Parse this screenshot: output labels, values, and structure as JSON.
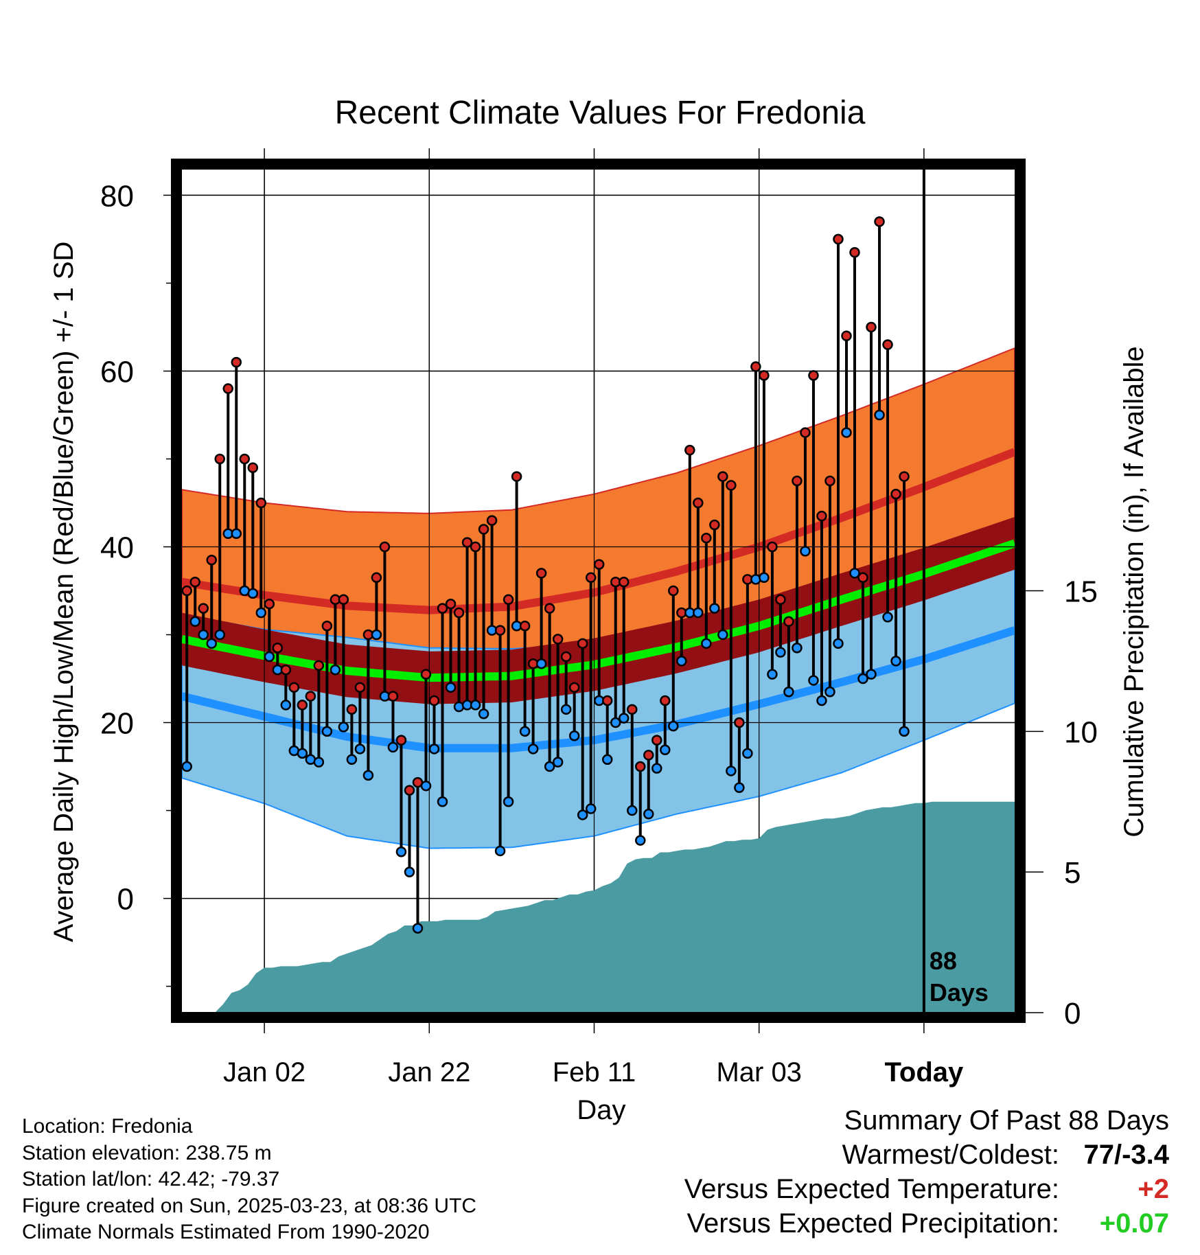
{
  "chart_data": {
    "type": "line",
    "title": "Recent Climate Values For Fredonia",
    "xlabel": "Day",
    "ylabel": "Average Daily High/Low/Mean (Red/Blue/Green) +/- 1 SD",
    "y2label": "Cumulative Precipitation (in), If Available",
    "xticks": [
      "Jan 02",
      "Jan 22",
      "Feb 11",
      "Mar 03",
      "Today"
    ],
    "xtick_days": [
      10,
      30,
      50,
      70,
      90
    ],
    "today_day": 90,
    "xlim": [
      0,
      101
    ],
    "ylim": [
      -13,
      83
    ],
    "yticks": [
      0,
      20,
      40,
      60,
      80
    ],
    "y2lim": [
      0,
      30
    ],
    "y2ticks": [
      0,
      5,
      10,
      15
    ],
    "grid": true,
    "days_annotation": [
      "88",
      "Days"
    ],
    "colors": {
      "high_band": "#f47a30",
      "high_mean": "#d42a25",
      "low_band": "#83c3e8",
      "low_mean": "#1e90ff",
      "mean_band": "#921014",
      "mean_line": "#00ee00",
      "precip": "#4a9ba2",
      "high_point": "#d42a25",
      "low_point": "#1e90ff"
    },
    "normals_days": [
      0,
      10,
      20,
      30,
      40,
      50,
      60,
      70,
      80,
      90,
      101
    ],
    "normal_high": [
      36,
      34.5,
      33.3,
      32.8,
      33.2,
      34.8,
      37.2,
      40,
      43.3,
      46.8,
      50.8
    ],
    "normal_high_sd": [
      10.5,
      10.5,
      10.7,
      11,
      11,
      11.2,
      11.2,
      11.5,
      11.6,
      11.7,
      11.8
    ],
    "normal_low": [
      23,
      20.7,
      18.4,
      17.1,
      17.1,
      18,
      19.8,
      22.1,
      24.6,
      27.2,
      30.5
    ],
    "normal_low_sd": [
      9.3,
      9.9,
      11.3,
      11.4,
      11.3,
      10.9,
      10.2,
      10.5,
      10.3,
      9.2,
      8.3
    ],
    "normal_mean": [
      29.5,
      27.6,
      25.9,
      25.1,
      25.3,
      26.6,
      28.6,
      31,
      34,
      36.9,
      40.4
    ],
    "normal_mean_sd": [
      3,
      3,
      3,
      3,
      3,
      3,
      3,
      3,
      3,
      3,
      3
    ],
    "series": [
      {
        "name": "High",
        "values": [
          35,
          36,
          33,
          38.5,
          50,
          58,
          61,
          50,
          49,
          45,
          33.5,
          28.5,
          26,
          24,
          22,
          23,
          26.5,
          31,
          34,
          34,
          21.5,
          24,
          30,
          36.5,
          40,
          23,
          18,
          12.3,
          13.2,
          25.5,
          22.5,
          33,
          33.5,
          32.5,
          40.5,
          40,
          42,
          43,
          30.5,
          34,
          48,
          31,
          26.7,
          37,
          33,
          29.5,
          27.5,
          24,
          29,
          36.5,
          38,
          22.5,
          36,
          36,
          21.5,
          15,
          16.3,
          18,
          22.5,
          35,
          32.5,
          51,
          45,
          41,
          42.5,
          48,
          47,
          20,
          36.3,
          60.5,
          59.5,
          40,
          34,
          31.5,
          47.5,
          53,
          59.5,
          43.5,
          47.5,
          75,
          64,
          73.5,
          36.5,
          65,
          77,
          63,
          46,
          48
        ]
      },
      {
        "name": "Low",
        "values": [
          15,
          31.5,
          30,
          29,
          30,
          41.5,
          41.5,
          35,
          34.7,
          32.5,
          27.5,
          26,
          22,
          16.8,
          16.5,
          15.8,
          15.5,
          19,
          26,
          19.5,
          15.8,
          17,
          14,
          30,
          23,
          17.2,
          5.3,
          3,
          -3.4,
          12.8,
          17,
          11,
          24,
          21.8,
          22,
          22,
          21,
          30.5,
          5.4,
          11,
          31,
          19,
          17,
          26.7,
          15,
          15.5,
          21.5,
          18.5,
          9.5,
          10.2,
          22.5,
          15.8,
          20,
          20.5,
          10,
          6.6,
          9.6,
          14.8,
          16.9,
          19.6,
          27,
          32.5,
          32.5,
          29,
          33,
          30,
          14.5,
          12.6,
          16.5,
          36.3,
          36.5,
          25.5,
          28,
          23.5,
          28.5,
          39.5,
          24.8,
          22.5,
          23.5,
          29,
          53,
          37,
          25,
          25.5,
          55,
          32,
          27,
          19
        ]
      },
      {
        "name": "Precipitation",
        "values": [
          0,
          0,
          0,
          0,
          0,
          0.3,
          0.7,
          0.8,
          1.0,
          1.4,
          1.6,
          1.6,
          1.65,
          1.65,
          1.65,
          1.7,
          1.75,
          1.8,
          1.8,
          2.0,
          2.1,
          2.2,
          2.3,
          2.4,
          2.6,
          2.8,
          2.9,
          3.1,
          3.1,
          3.25,
          3.25,
          3.25,
          3.3,
          3.3,
          3.3,
          3.3,
          3.3,
          3.4,
          3.6,
          3.65,
          3.7,
          3.75,
          3.8,
          3.9,
          4.0,
          4.0,
          4.1,
          4.2,
          4.2,
          4.3,
          4.35,
          4.5,
          4.6,
          4.8,
          5.3,
          5.45,
          5.5,
          5.5,
          5.7,
          5.7,
          5.75,
          5.8,
          5.8,
          5.85,
          5.9,
          6.0,
          6.1,
          6.1,
          6.15,
          6.15,
          6.2,
          6.5,
          6.6,
          6.65,
          6.7,
          6.75,
          6.8,
          6.85,
          6.9,
          6.9,
          6.95,
          7.0,
          7.1,
          7.2,
          7.25,
          7.3,
          7.3,
          7.35,
          7.4,
          7.45,
          7.45,
          7.5,
          7.5,
          7.5,
          7.5,
          7.5,
          7.5,
          7.5,
          7.5,
          7.5
        ]
      }
    ]
  },
  "location": {
    "name_line": "Location: Fredonia",
    "elevation_line": "Station elevation: 238.75 m",
    "latlon_line": "Station lat/lon: 42.42; -79.37",
    "created_line": "Figure created on Sun, 2025-03-23, at 08:36 UTC",
    "normals_line": "Climate Normals Estimated From 1990-2020"
  },
  "summary": {
    "header": "Summary Of Past 88 Days",
    "warmest_label": "Warmest/Coldest:",
    "warmest_value": "77/-3.4",
    "temp_label": "Versus Expected Temperature:",
    "temp_value": "+2",
    "temp_color": "#d42a25",
    "precip_label": "Versus Expected Precipitation:",
    "precip_value": "+0.07",
    "precip_color": "#22cc22"
  }
}
